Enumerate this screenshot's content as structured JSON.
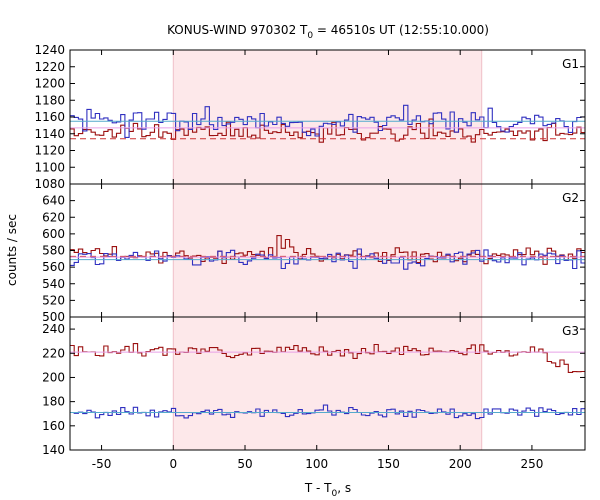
{
  "chart_data": {
    "type": "line",
    "title_main": "KONUS-WIND 970302 T",
    "title_sub": "0",
    "title_rest": " = 46510s UT (12:55:10.000)",
    "xlabel_main": "T - T",
    "xlabel_sub": "0",
    "xlabel_rest": ", s",
    "ylabel": "counts / sec",
    "xlim": [
      -72,
      287
    ],
    "xticks": [
      -50,
      0,
      50,
      100,
      150,
      200,
      250
    ],
    "highlight": [
      0,
      215
    ],
    "colors": {
      "red": "#9b1010",
      "blue": "#3030c0",
      "highlight": "#fde8ea",
      "fit_red": "#cc3333",
      "fit_blue": "#55aacc",
      "fit_pink": "#e8a0e8"
    },
    "panels": [
      {
        "name": "G1",
        "ylim": [
          1080,
          1240
        ],
        "yticks": [
          1080,
          1100,
          1120,
          1140,
          1160,
          1180,
          1200,
          1220,
          1240
        ],
        "series": [
          {
            "color": "red",
            "mean": 1142,
            "amp": 16,
            "seed": 11
          },
          {
            "color": "blue",
            "mean": 1155,
            "amp": 24,
            "seed": 23
          }
        ],
        "fits": [
          {
            "color": "fit_red",
            "y": 1134,
            "dashed": true
          },
          {
            "color": "fit_blue",
            "y": 1155,
            "dashed": false
          },
          {
            "color": "fit_pink",
            "y": 1147,
            "dashed": false
          }
        ]
      },
      {
        "name": "G2",
        "ylim": [
          500,
          660
        ],
        "yticks": [
          500,
          520,
          540,
          560,
          580,
          600,
          620,
          640
        ],
        "series": [
          {
            "color": "red",
            "mean": 574,
            "amp": 13,
            "seed": 37,
            "bump": [
              60,
              90,
              40
            ]
          },
          {
            "color": "blue",
            "mean": 570,
            "amp": 15,
            "seed": 51
          }
        ],
        "fits": [
          {
            "color": "fit_red",
            "y": 573,
            "dashed": true
          },
          {
            "color": "fit_blue",
            "y": 569,
            "dashed": false
          },
          {
            "color": "fit_pink",
            "y": 572,
            "dashed": false
          }
        ]
      },
      {
        "name": "G3",
        "ylim": [
          140,
          250
        ],
        "yticks": [
          140,
          160,
          180,
          200,
          220,
          240
        ],
        "series": [
          {
            "color": "red",
            "mean": 222,
            "amp": 7,
            "seed": 67,
            "dip": [
              250,
              287,
              -20
            ]
          },
          {
            "color": "blue",
            "mean": 171,
            "amp": 7,
            "seed": 79
          }
        ],
        "fits": [
          {
            "color": "fit_pink",
            "y": 221,
            "dashed": false
          },
          {
            "color": "fit_blue",
            "y": 171,
            "dashed": false
          }
        ]
      }
    ]
  }
}
